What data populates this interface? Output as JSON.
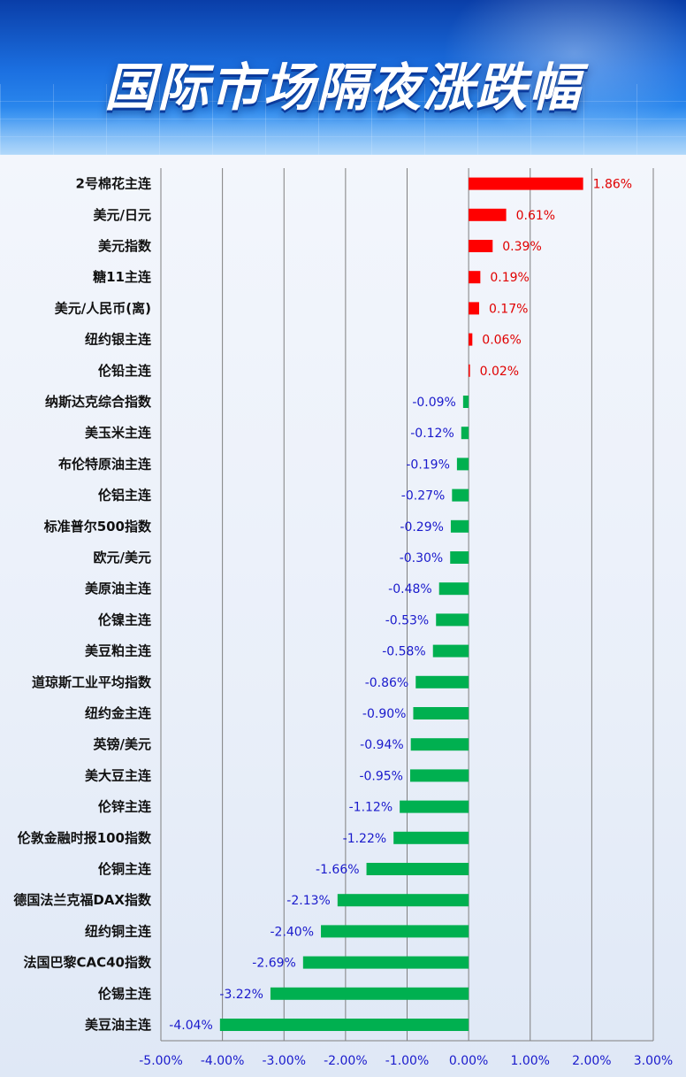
{
  "title": "国际市场隔夜涨跌幅",
  "colors": {
    "positive": "#ff0000",
    "negative": "#00b050",
    "pos_label": "#e00000",
    "neg_label": "#1a1acc",
    "grid": "#7f7f7f"
  },
  "chart_data": {
    "type": "bar",
    "orientation": "horizontal",
    "title": "国际市场隔夜涨跌幅",
    "xlim": [
      -5,
      3
    ],
    "xticks": [
      -5,
      -4,
      -3,
      -2,
      -1,
      0,
      1,
      2,
      3
    ],
    "xtick_labels": [
      "-5.00%",
      "-4.00%",
      "-3.00%",
      "-2.00%",
      "-1.00%",
      "0.00%",
      "1.00%",
      "2.00%",
      "3.00%"
    ],
    "grid": true,
    "categories": [
      "2号棉花主连",
      "美元/日元",
      "美元指数",
      "糖11主连",
      "美元/人民币(离)",
      "纽约银主连",
      "伦铅主连",
      "纳斯达克综合指数",
      "美玉米主连",
      "布伦特原油主连",
      "伦铝主连",
      "标准普尔500指数",
      "欧元/美元",
      "美原油主连",
      "伦镍主连",
      "美豆粕主连",
      "道琼斯工业平均指数",
      "纽约金主连",
      "英镑/美元",
      "美大豆主连",
      "伦锌主连",
      "伦敦金融时报100指数",
      "伦铜主连",
      "德国法兰克福DAX指数",
      "纽约铜主连",
      "法国巴黎CAC40指数",
      "伦锡主连",
      "美豆油主连"
    ],
    "values": [
      1.86,
      0.61,
      0.39,
      0.19,
      0.17,
      0.06,
      0.02,
      -0.09,
      -0.12,
      -0.19,
      -0.27,
      -0.29,
      -0.3,
      -0.48,
      -0.53,
      -0.58,
      -0.86,
      -0.9,
      -0.94,
      -0.95,
      -1.12,
      -1.22,
      -1.66,
      -2.13,
      -2.4,
      -2.69,
      -3.22,
      -4.04
    ],
    "value_labels": [
      "1.86%",
      "0.61%",
      "0.39%",
      "0.19%",
      "0.17%",
      "0.06%",
      "0.02%",
      "-0.09%",
      "-0.12%",
      "-0.19%",
      "-0.27%",
      "-0.29%",
      "-0.30%",
      "-0.48%",
      "-0.53%",
      "-0.58%",
      "-0.86%",
      "-0.90%",
      "-0.94%",
      "-0.95%",
      "-1.12%",
      "-1.22%",
      "-1.66%",
      "-2.13%",
      "-2.40%",
      "-2.69%",
      "-3.22%",
      "-4.04%"
    ]
  }
}
